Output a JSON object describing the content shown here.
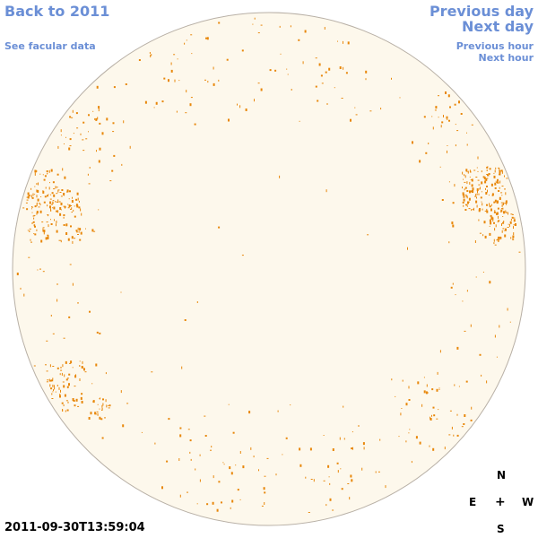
{
  "nav": {
    "back_label": "Back to 2011",
    "facular_label": "See facular data",
    "prev_day_label": "Previous day",
    "next_day_label": "Next day",
    "prev_hour_label": "Previous hour",
    "next_hour_label": "Next hour"
  },
  "timestamp": "2011-09-30T13:59:04",
  "compass": {
    "north": "N",
    "east": "E",
    "center": "+",
    "west": "W",
    "south": "S"
  },
  "colors": {
    "disk_fill": "#fdf8ec",
    "disk_stroke": "#b8b0a6",
    "feature": "#e8870a",
    "link": "#6b8fd6"
  }
}
